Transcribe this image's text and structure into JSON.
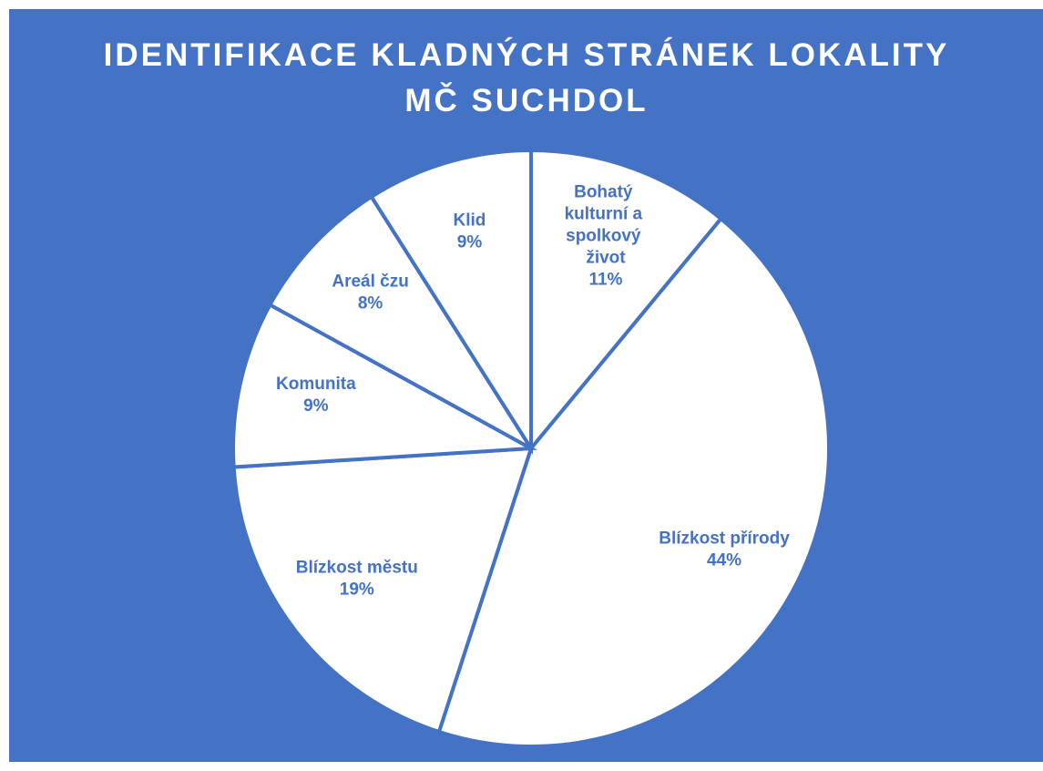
{
  "chart_data": {
    "type": "pie",
    "title": [
      "IDENTIFIKACE KLADNÝCH STRÁNEK LOKALITY",
      "MČ SUCHDOL"
    ],
    "categories": [
      "Bohatý kulturní a spolkový život",
      "Blízkost přírody",
      "Blízkost městu",
      "Komunita",
      "Areál čzu",
      "Klid"
    ],
    "values": [
      11,
      44,
      19,
      9,
      8,
      9
    ],
    "value_labels": [
      "11%",
      "44%",
      "19%",
      "9%",
      "8%",
      "9%"
    ],
    "background": "#4472c4",
    "slice_color": "#ffffff",
    "label_color": "#4472c4"
  }
}
